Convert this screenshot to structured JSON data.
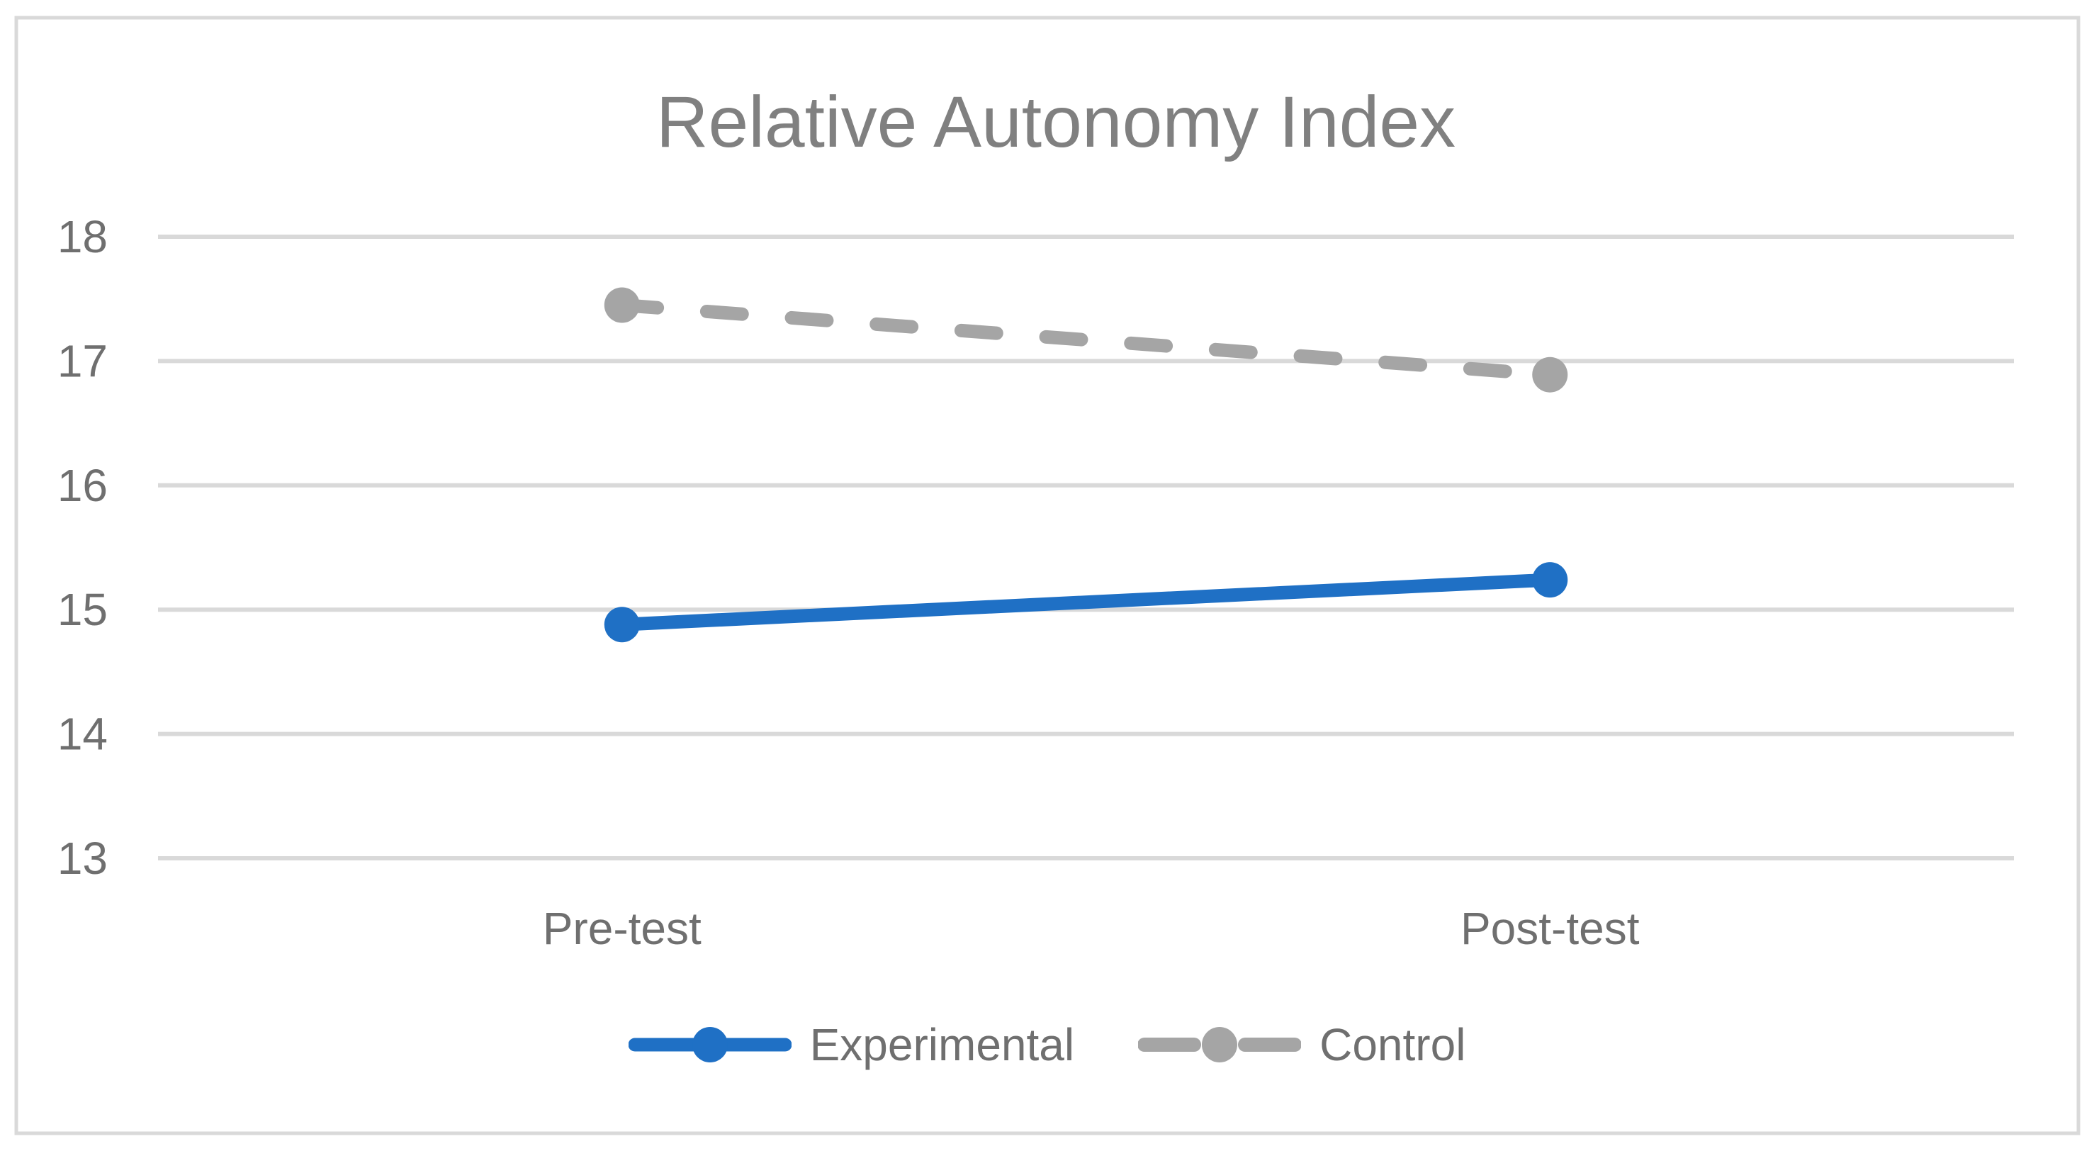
{
  "chart_data": {
    "type": "line",
    "title": "Relative Autonomy Index",
    "categories": [
      "Pre-test",
      "Post-test"
    ],
    "series": [
      {
        "name": "Experimental",
        "values": [
          14.88,
          15.24
        ],
        "color": "#1F70C5",
        "line_style": "solid",
        "marker": "circle"
      },
      {
        "name": "Control",
        "values": [
          17.45,
          16.89
        ],
        "color": "#A5A5A5",
        "line_style": "dashed",
        "marker": "circle"
      }
    ],
    "xlabel": "",
    "ylabel": "",
    "yticks": [
      18,
      17,
      16,
      15,
      14,
      13
    ],
    "ylim": [
      13,
      18
    ],
    "grid": "horizontal gridlines only",
    "legend_position": "bottom center",
    "colors": {
      "gridline": "#D9D9D9",
      "border": "#D9D9D9",
      "title_text": "#808080",
      "axis_text": "#6F6F6F",
      "legend_text": "#6F6F6F",
      "background": "#FFFFFF"
    }
  }
}
